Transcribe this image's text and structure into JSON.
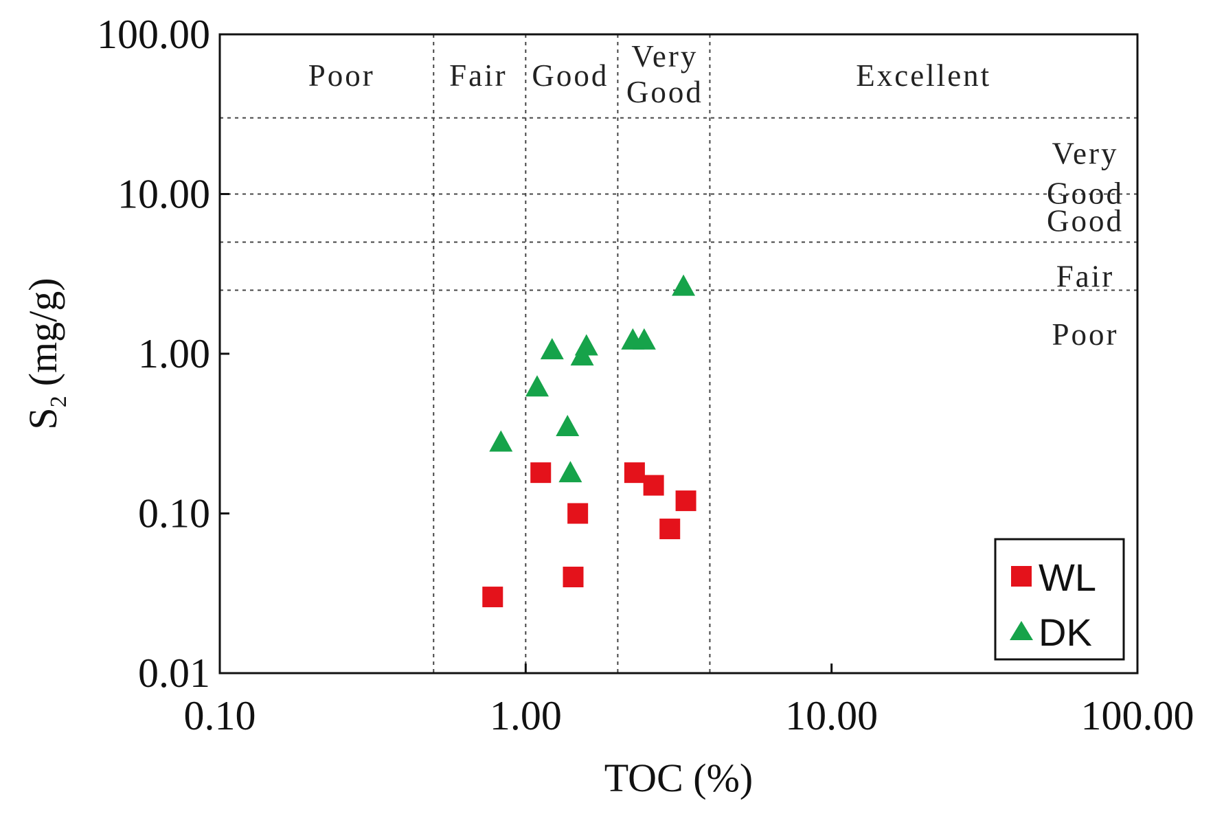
{
  "chart_data": {
    "type": "scatter",
    "xscale": "log",
    "yscale": "log",
    "xlim": [
      0.1,
      100
    ],
    "ylim": [
      0.01,
      100
    ],
    "xlabel": "TOC (%)",
    "ylabel": {
      "main": "S",
      "sub": "2",
      "unit": "(mg/g)"
    },
    "xticks": [
      0.1,
      1,
      10,
      100
    ],
    "xtick_labels": [
      "0.10",
      "1.00",
      "10.00",
      "100.00"
    ],
    "yticks": [
      0.01,
      0.1,
      1,
      10,
      100
    ],
    "ytick_labels": [
      "0.01",
      "0.10",
      "1.00",
      "10.00",
      "100.00"
    ],
    "toc_boundaries": [
      0.5,
      1.0,
      2.0,
      4.0
    ],
    "s2_boundaries": [
      2.5,
      5,
      10,
      30
    ],
    "toc_zones": [
      {
        "label": "Poor",
        "lines": [
          "Poor"
        ],
        "x": 0.25
      },
      {
        "label": "Fair",
        "lines": [
          "Fair"
        ],
        "x": 0.7
      },
      {
        "label": "Good",
        "lines": [
          "Good"
        ],
        "x": 1.4
      },
      {
        "label": "Very Good",
        "lines": [
          "Very",
          "Good"
        ],
        "x": 2.85
      },
      {
        "label": "Excellent",
        "lines": [
          "Excellent"
        ],
        "x": 20
      }
    ],
    "s2_zones": [
      {
        "label": "Very Good",
        "lines": [
          "Very",
          "Good"
        ],
        "y": 14
      },
      {
        "label": "Good",
        "lines": [
          "Good"
        ],
        "y": 6.8
      },
      {
        "label": "Fair",
        "lines": [
          "Fair"
        ],
        "y": 3.05
      },
      {
        "label": "Poor",
        "lines": [
          "Poor"
        ],
        "y": 1.32
      }
    ],
    "series": [
      {
        "name": "WL",
        "marker": "square",
        "color": "#e4121b",
        "points": [
          {
            "x": 0.78,
            "y": 0.03
          },
          {
            "x": 1.12,
            "y": 0.18
          },
          {
            "x": 1.43,
            "y": 0.04
          },
          {
            "x": 1.48,
            "y": 0.1
          },
          {
            "x": 2.27,
            "y": 0.18
          },
          {
            "x": 2.62,
            "y": 0.15
          },
          {
            "x": 2.96,
            "y": 0.08
          },
          {
            "x": 3.34,
            "y": 0.12
          }
        ]
      },
      {
        "name": "DK",
        "marker": "triangle",
        "color": "#16a34a",
        "points": [
          {
            "x": 0.83,
            "y": 0.28
          },
          {
            "x": 1.09,
            "y": 0.62
          },
          {
            "x": 1.22,
            "y": 1.06
          },
          {
            "x": 1.37,
            "y": 0.35
          },
          {
            "x": 1.4,
            "y": 0.18
          },
          {
            "x": 1.53,
            "y": 0.97
          },
          {
            "x": 1.58,
            "y": 1.12
          },
          {
            "x": 2.24,
            "y": 1.22
          },
          {
            "x": 2.44,
            "y": 1.22
          },
          {
            "x": 3.28,
            "y": 2.65
          }
        ]
      }
    ],
    "legend_position": "bottom-right"
  }
}
